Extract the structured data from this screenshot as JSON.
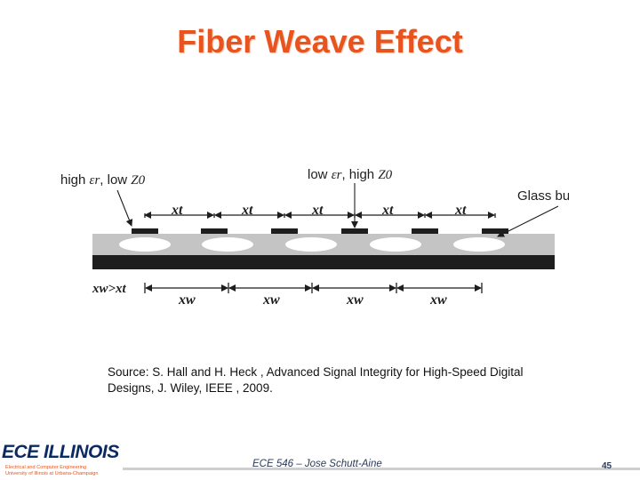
{
  "slide": {
    "title": "Fiber Weave Effect",
    "source_line1": "Source: S. Hall and H. Heck , Advanced Signal Integrity for High-Speed Digital",
    "source_line2": "Designs, J. Wiley, IEEE , 2009.",
    "footer": "ECE 546 – Jose Schutt-Aine",
    "page_number": "45"
  },
  "logo": {
    "brand_ece": "ECE",
    "brand_illinois": "ILLINOIS",
    "subtitle_line1": "Electrical and Computer Engineering",
    "subtitle_line2": "University of Illinois at Urbana-Champaign"
  },
  "diagram": {
    "label_high_er_prefix": "high ",
    "label_high_er_symbol": "εr",
    "label_low_z0_text": ", low ",
    "label_low_z0_symbol": "Z0",
    "label_low_er_prefix": "low ",
    "label_low_er_symbol": "εr",
    "label_high_z0_text": ", high ",
    "label_high_z0_symbol": "Z0",
    "label_glass_bundle": "Glass bundle",
    "xt_label": "xt",
    "xw_label": "xw",
    "xw_gt_xt_label": "xw>xt",
    "colors": {
      "dielectric": "#c4c4c4",
      "ground": "#1e1e1e",
      "trace": "#1e1e1e",
      "bundle": "#ffffff"
    }
  }
}
